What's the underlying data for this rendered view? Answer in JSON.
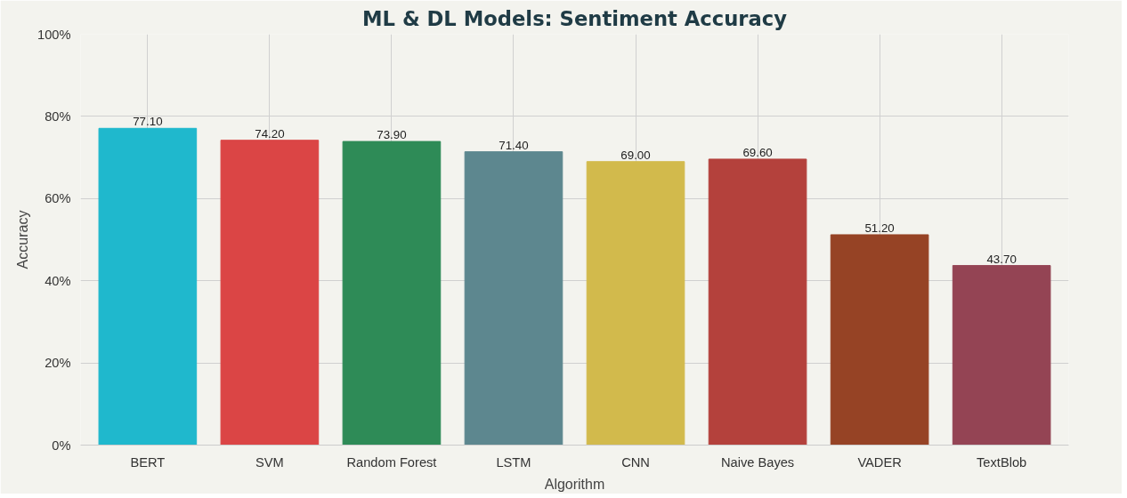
{
  "chart_data": {
    "type": "bar",
    "title": "ML & DL Models: Sentiment Accuracy",
    "xlabel": "Algorithm",
    "ylabel": "Accuracy",
    "categories": [
      "BERT",
      "SVM",
      "Random Forest",
      "LSTM",
      "CNN",
      "Naive Bayes",
      "VADER",
      "TextBlob"
    ],
    "values": [
      77.1,
      74.2,
      73.9,
      71.4,
      69.0,
      69.6,
      51.2,
      43.7
    ],
    "value_labels": [
      "77.10",
      "74.20",
      "73.90",
      "71.40",
      "69.00",
      "69.60",
      "51.20",
      "43.70"
    ],
    "colors": [
      "#1fb8cd",
      "#db4545",
      "#2e8b57",
      "#5d878f",
      "#d2ba4c",
      "#b4413c",
      "#964325",
      "#944454"
    ],
    "ylim": [
      0,
      100
    ],
    "yticks": [
      {
        "value": 0,
        "label": "0%"
      },
      {
        "value": 20,
        "label": "20%"
      },
      {
        "value": 40,
        "label": "40%"
      },
      {
        "value": 60,
        "label": "60%"
      },
      {
        "value": 80,
        "label": "80%"
      },
      {
        "value": 100,
        "label": "100%"
      }
    ],
    "grid": true
  }
}
